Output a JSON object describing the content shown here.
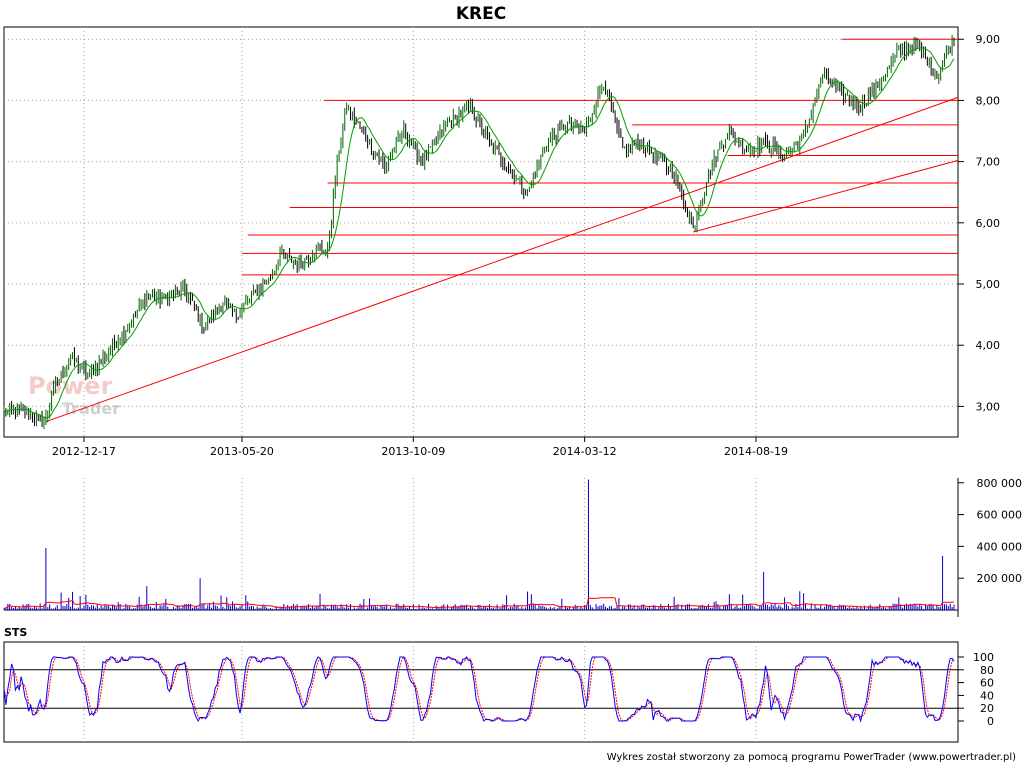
{
  "colors": {
    "candle_up": "#006400",
    "candle_down": "#000000",
    "ma_line": "#00a000",
    "trend_lines": "#ff0000",
    "volume_bars": "#0000cc",
    "volume_ma": "#ff0000",
    "sts_k": "#0000ff",
    "sts_d": "#ff0000",
    "grid": "#a0a0a0"
  },
  "footer": "Wykres został stworzony za pomocą programu PowerTrader (www.powertrader.pl)",
  "logo": {
    "line1": "Power",
    "line2": "Trader"
  },
  "chart_data": [
    {
      "type": "candlestick",
      "title": "KREC",
      "x_tick_labels": [
        "2012-12-17",
        "2013-05-20",
        "2013-10-09",
        "2014-03-12",
        "2014-08-19"
      ],
      "y_tick_labels": [
        "3,00",
        "4,00",
        "5,00",
        "6,00",
        "7,00",
        "8,00",
        "9,00"
      ],
      "y_ticks": [
        3,
        4,
        5,
        6,
        7,
        8,
        9
      ],
      "ylim": [
        2.5,
        9.2
      ],
      "sessions": 500,
      "x_tick_sessions": [
        42,
        125,
        215,
        305,
        395
      ],
      "grid": true,
      "close_path": [
        [
          0,
          2.9
        ],
        [
          5,
          2.95
        ],
        [
          15,
          2.85
        ],
        [
          20,
          2.75
        ],
        [
          22,
          2.8
        ],
        [
          25,
          3.2
        ],
        [
          35,
          3.8
        ],
        [
          45,
          3.5
        ],
        [
          55,
          3.9
        ],
        [
          65,
          4.3
        ],
        [
          75,
          4.8
        ],
        [
          85,
          4.75
        ],
        [
          95,
          4.9
        ],
        [
          105,
          4.3
        ],
        [
          115,
          4.7
        ],
        [
          122,
          4.5
        ],
        [
          130,
          4.8
        ],
        [
          140,
          5.1
        ],
        [
          145,
          5.5
        ],
        [
          155,
          5.3
        ],
        [
          165,
          5.6
        ],
        [
          170,
          5.5
        ],
        [
          175,
          7.0
        ],
        [
          180,
          7.9
        ],
        [
          190,
          7.4
        ],
        [
          200,
          6.9
        ],
        [
          210,
          7.5
        ],
        [
          220,
          7.0
        ],
        [
          232,
          7.6
        ],
        [
          245,
          7.9
        ],
        [
          255,
          7.3
        ],
        [
          265,
          6.9
        ],
        [
          275,
          6.5
        ],
        [
          285,
          7.3
        ],
        [
          295,
          7.6
        ],
        [
          305,
          7.5
        ],
        [
          315,
          8.3
        ],
        [
          325,
          7.2
        ],
        [
          335,
          7.3
        ],
        [
          345,
          7.0
        ],
        [
          352,
          6.8
        ],
        [
          362,
          5.9
        ],
        [
          370,
          6.8
        ],
        [
          380,
          7.5
        ],
        [
          390,
          7.2
        ],
        [
          400,
          7.3
        ],
        [
          410,
          7.1
        ],
        [
          420,
          7.4
        ],
        [
          430,
          8.4
        ],
        [
          440,
          8.1
        ],
        [
          450,
          7.9
        ],
        [
          460,
          8.3
        ],
        [
          470,
          8.8
        ],
        [
          480,
          8.9
        ],
        [
          490,
          8.4
        ],
        [
          499,
          9.0
        ]
      ],
      "horizontal_lines": [
        {
          "y": 9.0,
          "from": 440,
          "to": 499
        },
        {
          "y": 8.0,
          "from": 168,
          "to": 499
        },
        {
          "y": 7.6,
          "from": 330,
          "to": 499
        },
        {
          "y": 7.1,
          "from": 380,
          "to": 499
        },
        {
          "y": 6.65,
          "from": 170,
          "to": 499
        },
        {
          "y": 6.25,
          "from": 150,
          "to": 499
        },
        {
          "y": 5.8,
          "from": 128,
          "to": 499
        },
        {
          "y": 5.5,
          "from": 125,
          "to": 499
        },
        {
          "y": 5.15,
          "from": 125,
          "to": 499
        }
      ],
      "trend_lines": [
        {
          "from": [
            22,
            2.75
          ],
          "to": [
            499,
            8.05
          ]
        },
        {
          "from": [
            362,
            5.85
          ],
          "to": [
            499,
            7.02
          ]
        }
      ]
    },
    {
      "type": "bar",
      "name": "volume",
      "y_tick_labels": [
        "200 000",
        "400 000",
        "600 000",
        "800 000"
      ],
      "y_ticks": [
        200000,
        400000,
        600000,
        800000
      ],
      "ylim": [
        0,
        830000
      ],
      "spikes": [
        [
          22,
          390000
        ],
        [
          75,
          150000
        ],
        [
          103,
          200000
        ],
        [
          307,
          820000
        ],
        [
          399,
          240000
        ],
        [
          493,
          340000
        ]
      ],
      "baseline_average": 25000
    },
    {
      "type": "line",
      "name": "STS",
      "y_tick_labels": [
        "0",
        "20",
        "40",
        "60",
        "80",
        "100"
      ],
      "y_ticks": [
        0,
        20,
        40,
        60,
        80,
        100
      ],
      "ylim": [
        0,
        100
      ],
      "reference_lines": [
        20,
        80
      ]
    }
  ],
  "panels": {
    "sts_label": "STS"
  }
}
